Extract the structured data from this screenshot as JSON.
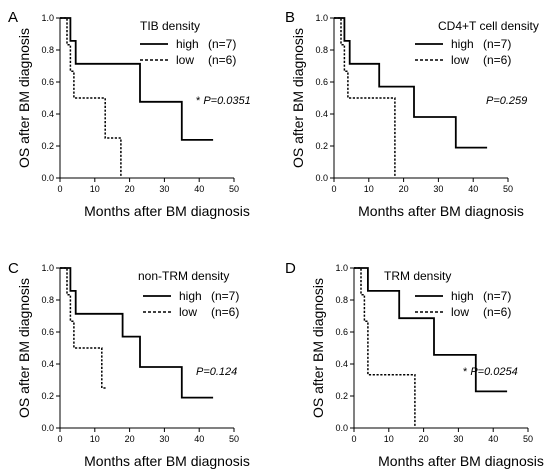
{
  "chart_data": [
    {
      "type": "line",
      "panel_label": "A",
      "title": "TIB density",
      "xlabel": "Months after BM diagnosis",
      "ylabel": "OS  after BM diagnosis",
      "xlim": [
        0,
        50
      ],
      "ylim": [
        0,
        1.0
      ],
      "xticks": [
        "0",
        "10",
        "20",
        "30",
        "40",
        "50"
      ],
      "yticks": [
        "0.0",
        "0.2",
        "0.4",
        "0.6",
        "0.8",
        "1.0"
      ],
      "grid": false,
      "legend_position": "top-right",
      "pvalue": "P=0.0351",
      "pvalue_prefix": "*",
      "series": [
        {
          "name": "high",
          "n_label": "(n=7)",
          "style": "solid",
          "x": [
            0,
            3,
            3,
            4.5,
            4.5,
            23,
            23,
            35,
            35,
            44
          ],
          "y": [
            1.0,
            1.0,
            0.857,
            0.857,
            0.714,
            0.714,
            0.476,
            0.476,
            0.238,
            0.238
          ]
        },
        {
          "name": "low",
          "n_label": "(n=6)",
          "style": "dashed",
          "x": [
            0,
            2,
            2,
            3,
            3,
            4,
            4,
            13,
            13,
            17.5,
            17.5
          ],
          "y": [
            1.0,
            1.0,
            0.833,
            0.833,
            0.667,
            0.667,
            0.5,
            0.5,
            0.25,
            0.25,
            0.0
          ]
        }
      ]
    },
    {
      "type": "line",
      "panel_label": "B",
      "title": "CD4+T cell density",
      "xlabel": "Months after BM diagnosis",
      "ylabel": "OS  after BM diagnosis",
      "xlim": [
        0,
        50
      ],
      "ylim": [
        0,
        1.0
      ],
      "xticks": [
        "0",
        "10",
        "20",
        "30",
        "40",
        "50"
      ],
      "yticks": [
        "0.0",
        "0.2",
        "0.4",
        "0.6",
        "0.8",
        "1.0"
      ],
      "grid": false,
      "legend_position": "top-right",
      "pvalue": "P=0.259",
      "pvalue_prefix": "",
      "series": [
        {
          "name": "high",
          "n_label": "(n=7)",
          "style": "solid",
          "x": [
            0,
            3,
            3,
            4.5,
            4.5,
            13,
            13,
            23,
            23,
            35,
            35,
            44
          ],
          "y": [
            1.0,
            1.0,
            0.857,
            0.857,
            0.714,
            0.714,
            0.571,
            0.571,
            0.381,
            0.381,
            0.19,
            0.19
          ]
        },
        {
          "name": "low",
          "n_label": "(n=6)",
          "style": "dashed",
          "x": [
            0,
            2,
            2,
            3,
            3,
            4,
            4,
            17.5,
            17.5
          ],
          "y": [
            1.0,
            1.0,
            0.833,
            0.833,
            0.667,
            0.667,
            0.5,
            0.5,
            0.0
          ]
        }
      ]
    },
    {
      "type": "line",
      "panel_label": "C",
      "title": "non-TRM density",
      "xlabel": "Months after BM diagnosis",
      "ylabel": "OS  after BM diagnosis",
      "xlim": [
        0,
        50
      ],
      "ylim": [
        0,
        1.0
      ],
      "xticks": [
        "0",
        "10",
        "20",
        "30",
        "40",
        "50"
      ],
      "yticks": [
        "0.0",
        "0.2",
        "0.4",
        "0.6",
        "0.8",
        "1.0"
      ],
      "grid": false,
      "legend_position": "top-right",
      "pvalue": "P=0.124",
      "pvalue_prefix": "",
      "series": [
        {
          "name": "high",
          "n_label": "(n=7)",
          "style": "solid",
          "x": [
            0,
            3,
            3,
            4.5,
            4.5,
            18,
            18,
            23,
            23,
            35,
            35,
            44
          ],
          "y": [
            1.0,
            1.0,
            0.857,
            0.857,
            0.714,
            0.714,
            0.571,
            0.571,
            0.381,
            0.381,
            0.19,
            0.19
          ]
        },
        {
          "name": "low",
          "n_label": "(n=6)",
          "style": "dashed",
          "x": [
            0,
            2,
            2,
            3,
            3,
            4,
            4,
            12,
            12,
            13.5
          ],
          "y": [
            1.0,
            1.0,
            0.833,
            0.833,
            0.667,
            0.667,
            0.5,
            0.5,
            0.25,
            0.25
          ]
        }
      ]
    },
    {
      "type": "line",
      "panel_label": "D",
      "title": "TRM density",
      "xlabel": "Months after BM diagnosis",
      "ylabel": "OS  after BM diagnosis",
      "xlim": [
        0,
        50
      ],
      "ylim": [
        0,
        1.0
      ],
      "xticks": [
        "0",
        "10",
        "20",
        "30",
        "40",
        "50"
      ],
      "yticks": [
        "0.0",
        "0.2",
        "0.4",
        "0.6",
        "0.8",
        "1.0"
      ],
      "grid": false,
      "legend_position": "top-right",
      "pvalue": "P=0.0254",
      "pvalue_prefix": "*",
      "series": [
        {
          "name": "high",
          "n_label": "(n=7)",
          "style": "solid",
          "x": [
            0,
            4,
            4,
            13,
            13,
            23,
            23,
            35,
            35,
            44
          ],
          "y": [
            1.0,
            1.0,
            0.857,
            0.857,
            0.686,
            0.686,
            0.457,
            0.457,
            0.229,
            0.229
          ]
        },
        {
          "name": "low",
          "n_label": "(n=6)",
          "style": "dashed",
          "x": [
            0,
            2,
            2,
            3,
            3,
            4,
            4,
            17.5,
            17.5
          ],
          "y": [
            1.0,
            1.0,
            0.833,
            0.833,
            0.667,
            0.667,
            0.333,
            0.333,
            0.0
          ]
        }
      ]
    }
  ]
}
